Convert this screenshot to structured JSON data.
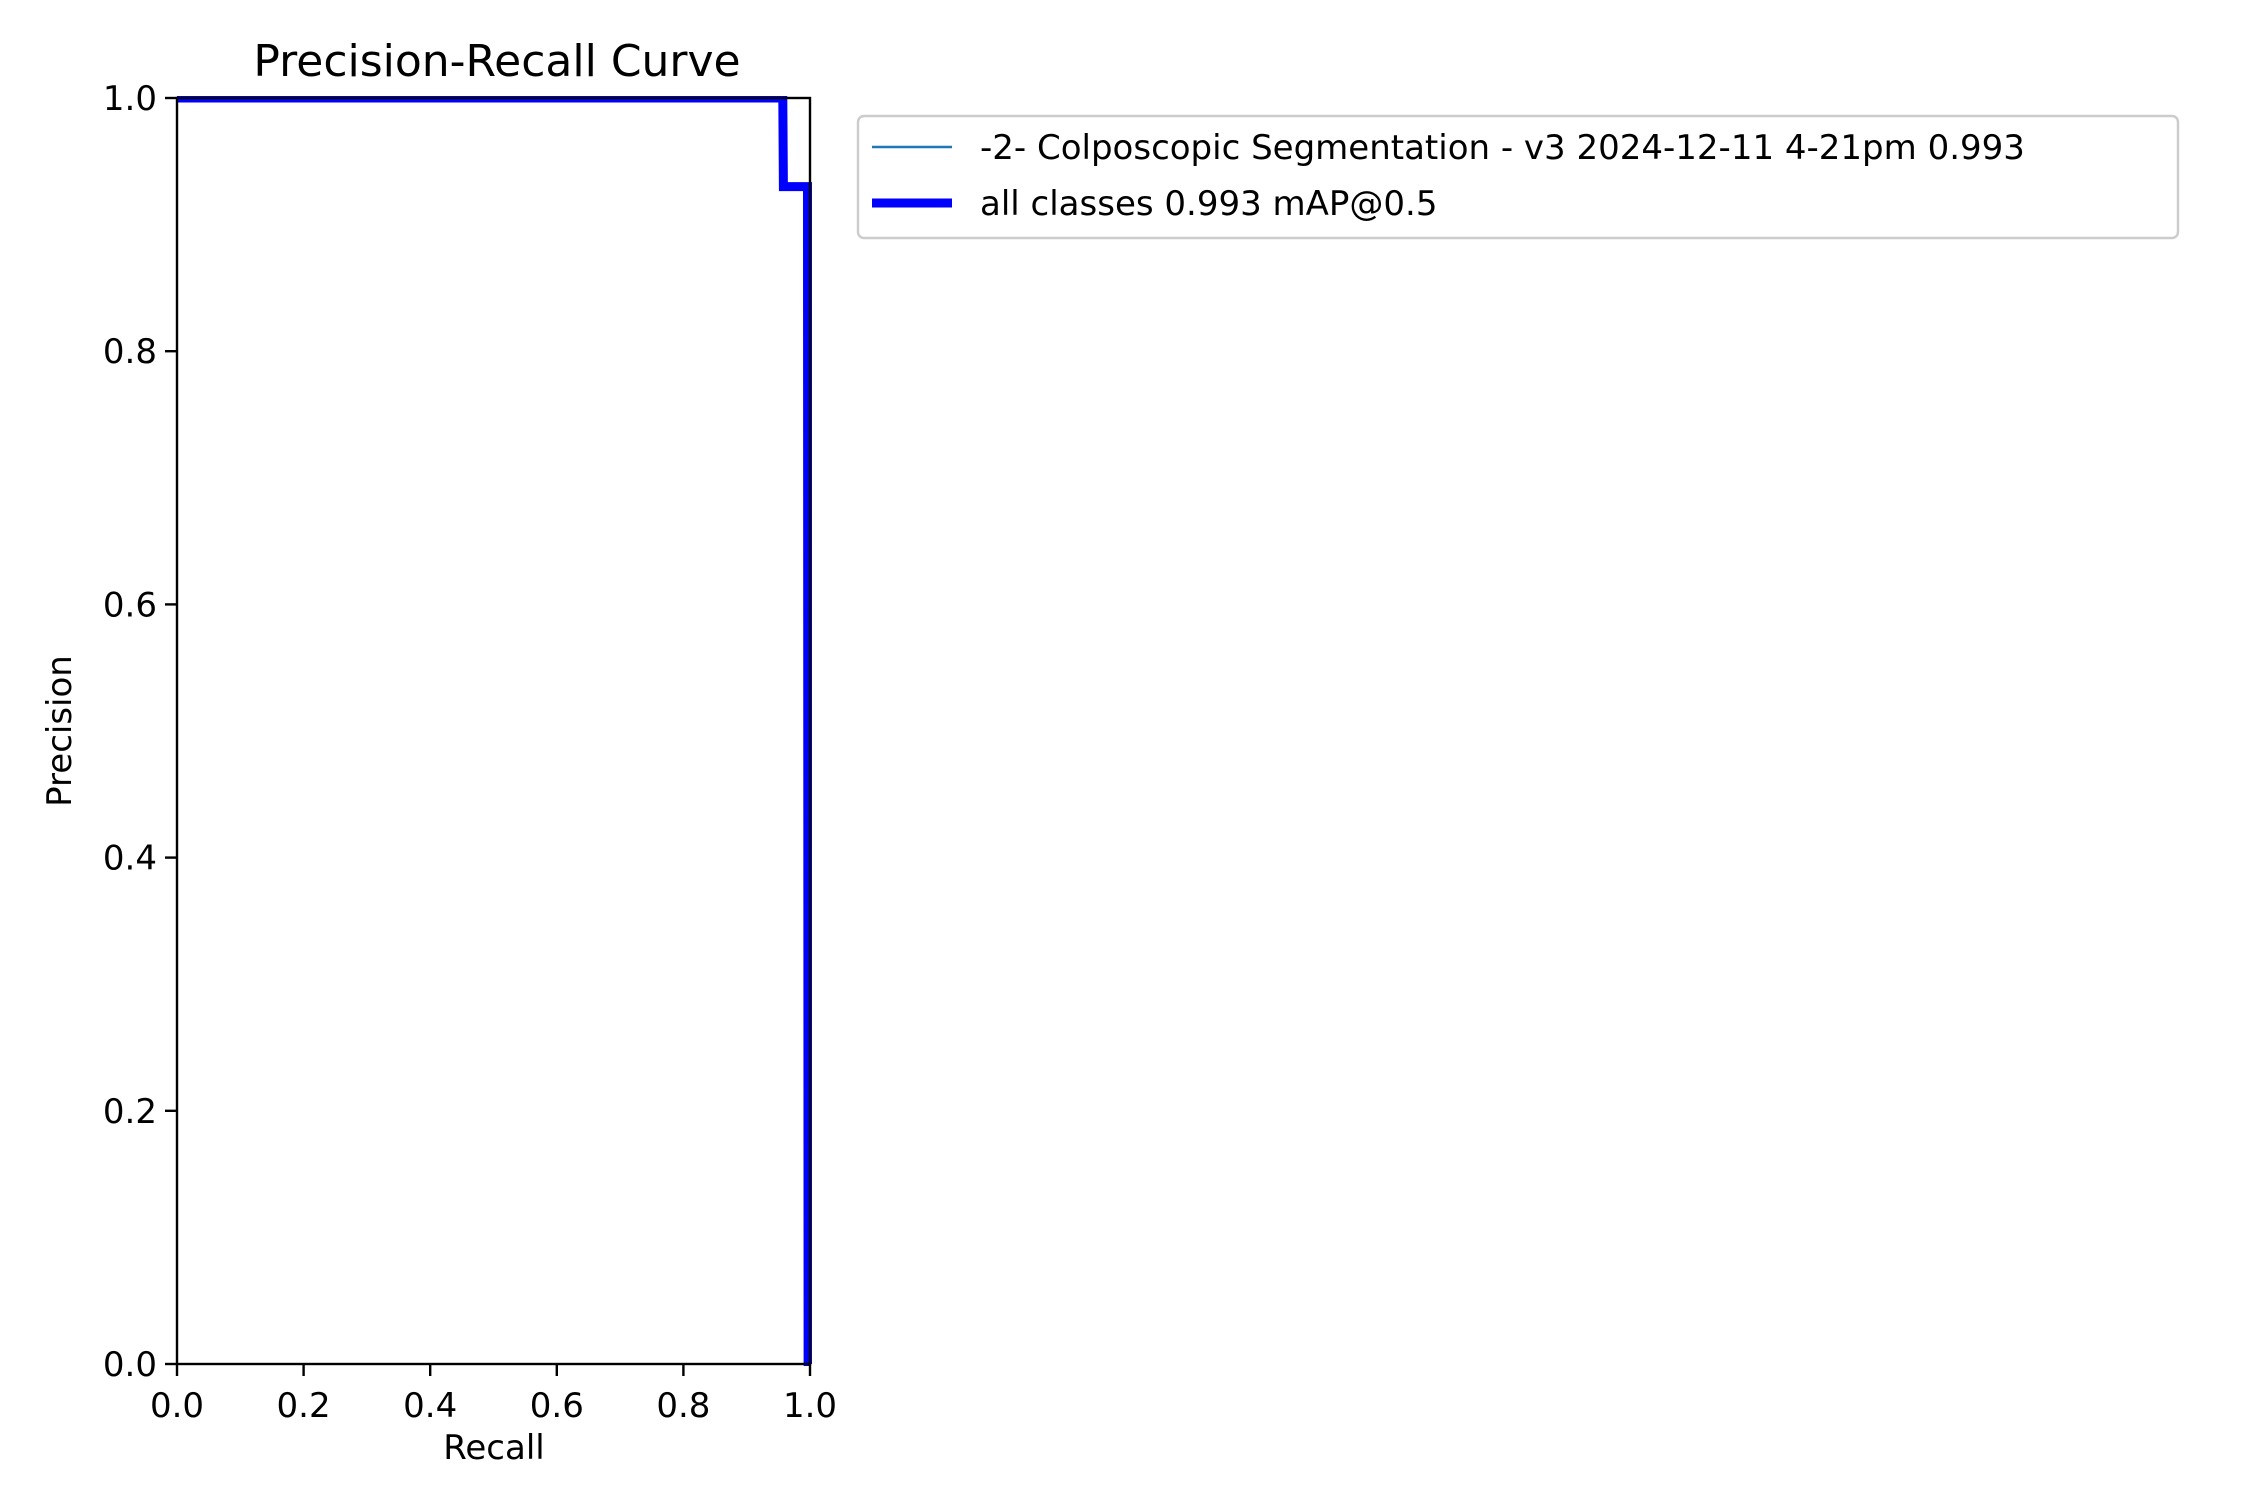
{
  "chart_data": {
    "type": "line",
    "title": "Precision-Recall Curve",
    "xlabel": "Recall",
    "ylabel": "Precision",
    "xlim": [
      0,
      1
    ],
    "ylim": [
      0,
      1
    ],
    "xticks": [
      "0.0",
      "0.2",
      "0.4",
      "0.6",
      "0.8",
      "1.0"
    ],
    "yticks": [
      "0.0",
      "0.2",
      "0.4",
      "0.6",
      "0.8",
      "1.0"
    ],
    "grid": false,
    "legend_position": "outside-right",
    "series": [
      {
        "name": "-2- Colposcopic Segmentation - v3 2024-12-11 4-21pm 0.993",
        "color": "#1f77b4",
        "style": "thin",
        "x": [
          0.0,
          0.957,
          0.958,
          0.996,
          0.997,
          1.0
        ],
        "y": [
          1.0,
          1.0,
          0.93,
          0.93,
          0.0,
          0.0
        ]
      },
      {
        "name": "all classes 0.993 mAP@0.5",
        "color": "#0000ff",
        "style": "thick",
        "x": [
          0.0,
          0.957,
          0.958,
          0.996,
          0.997,
          1.0
        ],
        "y": [
          1.0,
          1.0,
          0.93,
          0.93,
          0.0,
          0.0
        ]
      }
    ]
  }
}
